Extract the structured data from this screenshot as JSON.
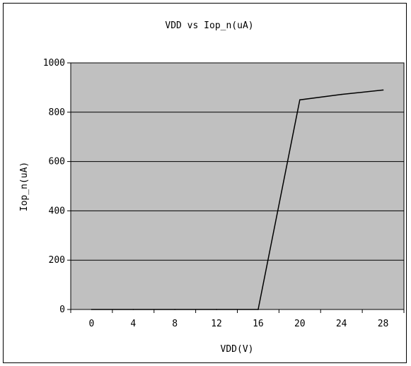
{
  "chart_data": {
    "type": "line",
    "title": "VDD vs Iop_n(uA)",
    "xlabel": "VDD(V)",
    "ylabel": "Iop_n(uA)",
    "x_ticks": [
      "0",
      "4",
      "8",
      "12",
      "16",
      "20",
      "24",
      "28"
    ],
    "y_ticks": [
      "0",
      "200",
      "400",
      "600",
      "800",
      "1000"
    ],
    "xlim": [
      -2,
      30
    ],
    "ylim": [
      0,
      1000
    ],
    "grid": "horizontal",
    "legend": "none",
    "series": [
      {
        "x": [
          0,
          4,
          8,
          12,
          16,
          20,
          24,
          28
        ],
        "y": [
          0,
          0,
          0,
          0,
          0,
          850,
          872,
          890
        ]
      }
    ],
    "colors": {
      "plot_background": "#c0c0c0",
      "line": "#000000",
      "gridline": "#000000"
    }
  }
}
